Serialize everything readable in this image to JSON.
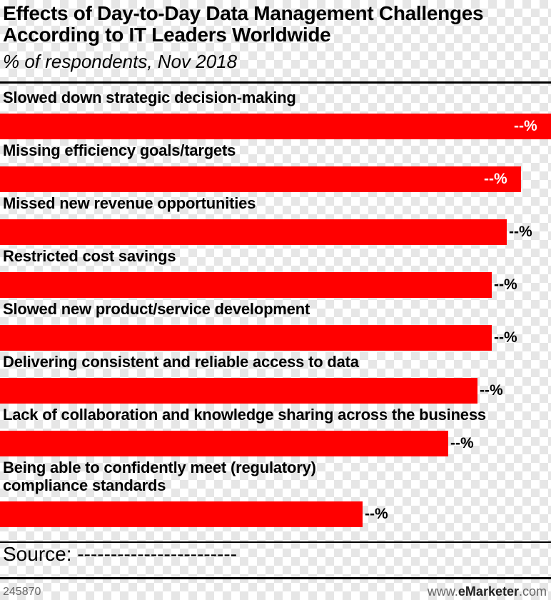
{
  "colors": {
    "bar": "#ff0000",
    "text": "#000000",
    "value_inside": "#ffffff"
  },
  "chart_data": {
    "type": "bar",
    "orientation": "horizontal",
    "title": "Effects of Day-to-Day Data Management Challenges\nAccording to IT Leaders Worldwide",
    "subtitle": "% of respondents, Nov 2018",
    "categories": [
      "Slowed down strategic decision-making",
      "Missing efficiency goals/targets",
      "Missed new revenue opportunities",
      "Restricted cost savings",
      "Slowed new product/service development",
      "Delivering consistent and reliable access to data",
      "Lack of collaboration and knowledge sharing across the business",
      "Being able to confidently meet (regulatory)\ncompliance standards"
    ],
    "values": [
      100,
      94.6,
      92,
      89.3,
      89.3,
      86.7,
      81.3,
      65.8
    ],
    "value_labels": [
      "--%",
      "--%",
      "--%",
      "--%",
      "--%",
      "--%",
      "--%",
      "--%"
    ],
    "xlim": [
      0,
      100
    ],
    "grid": false,
    "legend": "none"
  },
  "footer": {
    "source": "Source: ------------------------",
    "id": "245870",
    "brand_prefix": "www.",
    "brand_bold": "eMarketer",
    "brand_suffix": ".com"
  }
}
